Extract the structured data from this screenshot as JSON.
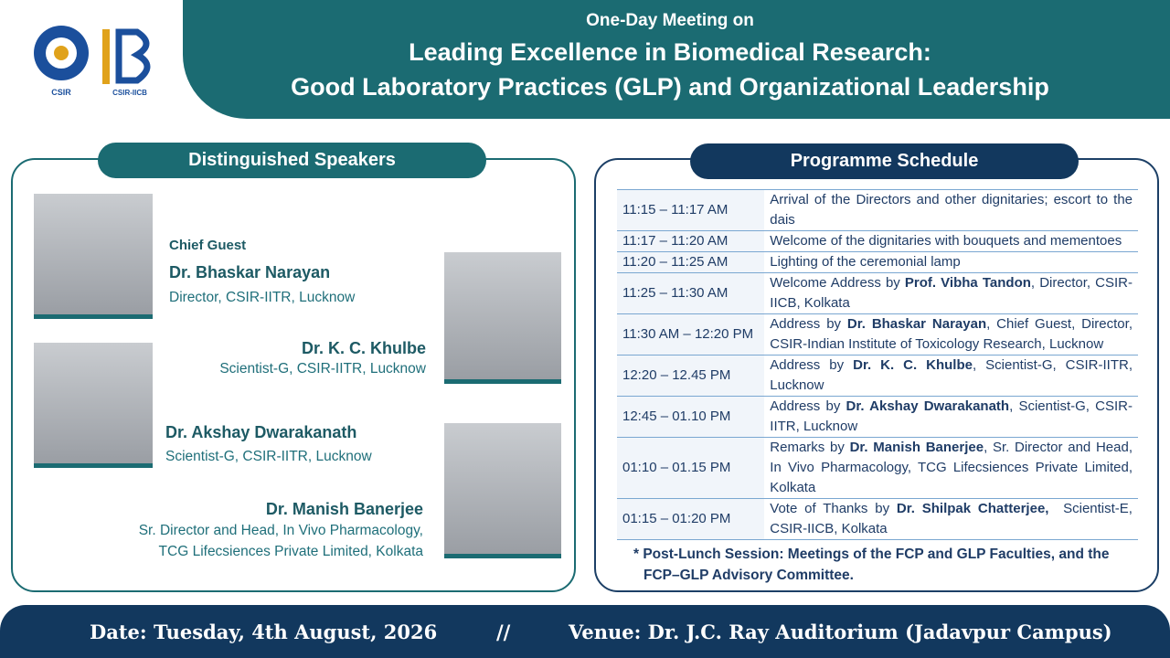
{
  "header": {
    "kicker": "One-Day Meeting on",
    "title_lines": [
      "Leading Excellence in Biomedical Research:",
      "Good Laboratory Practices (GLP) and Organizational Leadership"
    ],
    "logos": [
      "CSIR",
      "CSIR-IICB"
    ]
  },
  "speakers": {
    "heading": "Distinguished Speakers",
    "people": [
      {
        "tag": "Chief Guest",
        "name": "Dr. Bhaskar Narayan",
        "role": [
          "Director, CSIR-IITR, Lucknow"
        ]
      },
      {
        "name": "Dr. K. C. Khulbe",
        "role": [
          "Scientist-G, CSIR-IITR, Lucknow"
        ]
      },
      {
        "name": "Dr. Akshay Dwarakanath",
        "role": [
          "Scientist-G, CSIR-IITR, Lucknow"
        ]
      },
      {
        "name": "Dr. Manish Banerjee",
        "role": [
          "Sr. Director and Head, In Vivo Pharmacology,",
          "TCG Lifecsiences Private Limited, Kolkata"
        ]
      }
    ]
  },
  "schedule": {
    "heading": "Programme Schedule",
    "rows": [
      {
        "time": "11:15 – 11:17 AM",
        "desc": [
          "Arrival of the Directors and other dignitaries; escort to the dais"
        ]
      },
      {
        "time": "11:17 – 11:20 AM",
        "desc": [
          "Welcome of the dignitaries with bouquets and mementoes"
        ]
      },
      {
        "time": "11:20 – 11:25 AM",
        "desc": [
          "Lighting of the ceremonial lamp"
        ]
      },
      {
        "time": "11:25 – 11:30 AM",
        "desc": [
          "Welcome Address by ",
          "Prof. Vibha Tandon",
          ", Director, CSIR-IICB, Kolkata"
        ]
      },
      {
        "time": "11:30 AM – 12:20 PM",
        "desc": [
          "Address by ",
          "Dr. Bhaskar Narayan",
          ", Chief Guest, Director, CSIR-Indian Institute of Toxicology Research, Lucknow"
        ]
      },
      {
        "time": "12:20 – 12.45 PM",
        "desc": [
          "Address by ",
          "Dr. K. C. Khulbe",
          ", Scientist-G, CSIR-IITR, Lucknow"
        ]
      },
      {
        "time": "12:45 – 01.10 PM",
        "desc": [
          "Address by ",
          "Dr. Akshay Dwarakanath",
          ", Scientist-G, CSIR-IITR, Lucknow"
        ]
      },
      {
        "time": "01:10 – 01.15 PM",
        "desc": [
          "Remarks by ",
          "Dr. Manish Banerjee",
          ", Sr. Director and Head, In Vivo Pharmacology, TCG Lifecsiences Private Limited, Kolkata"
        ]
      },
      {
        "time": "01:15 – 01:20 PM",
        "desc": [
          "Vote of Thanks by ",
          "Dr. Shilpak Chatterjee,",
          "  Scientist-E, CSIR-IICB, Kolkata"
        ]
      }
    ],
    "note_lines": [
      "* Post-Lunch Session: Meetings of the FCP and GLP Faculties, and the",
      "FCP–GLP Advisory Committee."
    ]
  },
  "footer": {
    "date": "Date: Tuesday, 4th August, 2026",
    "separator": "//",
    "venue": "Venue: Dr. J.C. Ray Auditorium (Jadavpur Campus)"
  }
}
